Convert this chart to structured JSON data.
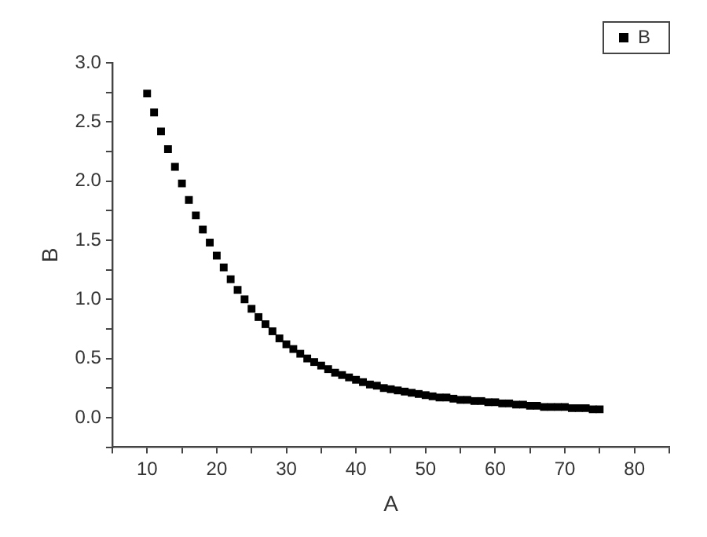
{
  "chart_data": {
    "type": "scatter",
    "xlabel": "A",
    "ylabel": "B",
    "marker": "square",
    "grid": false,
    "legend": "top right",
    "xlim": [
      5,
      85
    ],
    "xticks": [
      {
        "value": 5,
        "label": null
      },
      10,
      {
        "value": 15,
        "label": null
      },
      20,
      {
        "value": 25,
        "label": null
      },
      30,
      {
        "value": 35,
        "label": null
      },
      40,
      {
        "value": 45,
        "label": null
      },
      50,
      {
        "value": 55,
        "label": null
      },
      60,
      {
        "value": 65,
        "label": null
      },
      70,
      {
        "value": 75,
        "label": null
      },
      80,
      {
        "value": 85,
        "label": null
      }
    ],
    "ylim": [
      -0.25,
      3.0
    ],
    "yticks": [
      {
        "value": -0.25,
        "label": null
      },
      {
        "value": 0,
        "label": "0.0"
      },
      {
        "value": 0.25,
        "label": null
      },
      {
        "value": 0.5,
        "label": "0.5"
      },
      {
        "value": 0.75,
        "label": null
      },
      {
        "value": 1,
        "label": "1.0"
      },
      {
        "value": 1.25,
        "label": null
      },
      {
        "value": 1.5,
        "label": "1.5"
      },
      {
        "value": 1.75,
        "label": null
      },
      {
        "value": 2,
        "label": "2.0"
      },
      {
        "value": 2.25,
        "label": null
      },
      {
        "value": 2.5,
        "label": "2.5"
      },
      {
        "value": 2.75,
        "label": null
      },
      {
        "value": 3,
        "label": "3.0"
      }
    ],
    "series": [
      {
        "name": "B",
        "color": "#000000",
        "x": [
          10,
          11,
          12,
          13,
          14,
          15,
          16,
          17,
          18,
          19,
          20,
          21,
          22,
          23,
          24,
          25,
          26,
          27,
          28,
          29,
          30,
          31,
          32,
          33,
          34,
          35,
          36,
          37,
          38,
          39,
          40,
          41,
          42,
          43,
          44,
          45,
          46,
          47,
          48,
          49,
          50,
          51,
          52,
          53,
          54,
          55,
          56,
          57,
          58,
          59,
          60,
          61,
          62,
          63,
          64,
          65,
          66,
          67,
          68,
          69,
          70,
          71,
          72,
          73,
          74,
          75
        ],
        "values": [
          2.74,
          2.58,
          2.42,
          2.27,
          2.12,
          1.98,
          1.84,
          1.71,
          1.59,
          1.48,
          1.37,
          1.27,
          1.17,
          1.08,
          1.0,
          0.92,
          0.85,
          0.79,
          0.73,
          0.67,
          0.62,
          0.58,
          0.54,
          0.5,
          0.47,
          0.44,
          0.41,
          0.38,
          0.36,
          0.34,
          0.32,
          0.3,
          0.28,
          0.27,
          0.25,
          0.24,
          0.23,
          0.22,
          0.21,
          0.2,
          0.19,
          0.18,
          0.17,
          0.17,
          0.16,
          0.15,
          0.15,
          0.14,
          0.14,
          0.13,
          0.13,
          0.12,
          0.12,
          0.11,
          0.11,
          0.1,
          0.1,
          0.09,
          0.09,
          0.09,
          0.09,
          0.08,
          0.08,
          0.08,
          0.07,
          0.07
        ]
      }
    ]
  }
}
